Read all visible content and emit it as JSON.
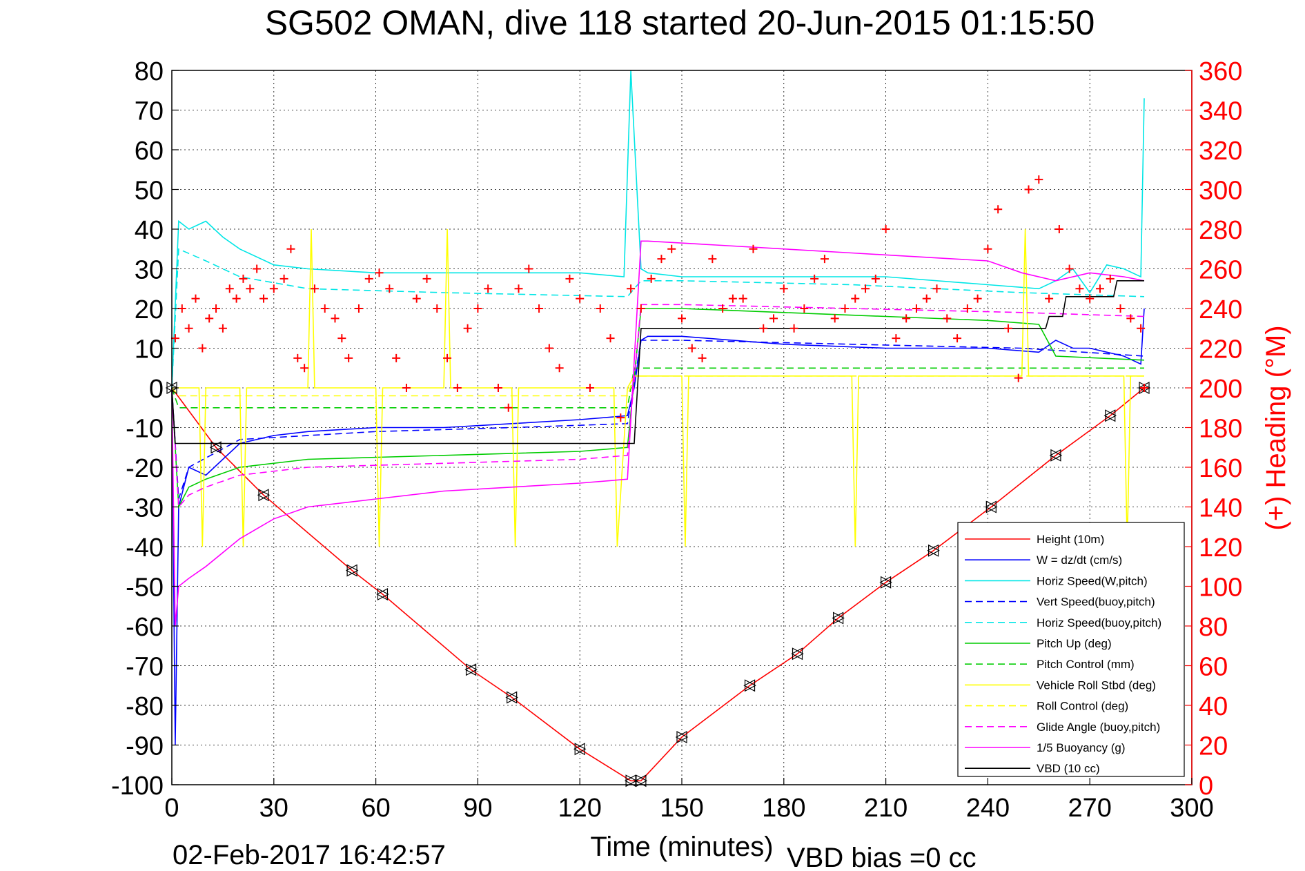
{
  "chart_data": {
    "type": "line",
    "title": "SG502 OMAN, dive 118 started 20-Jun-2015 01:15:50",
    "xlabel": "Time (minutes)",
    "ylabel": "",
    "y2label": "(+) Heading (°M)",
    "xlim": [
      0,
      300
    ],
    "ylim": [
      -100,
      80
    ],
    "y2lim": [
      0,
      360
    ],
    "x_ticks": [
      0,
      30,
      60,
      90,
      120,
      150,
      180,
      210,
      240,
      270,
      300
    ],
    "y_ticks": [
      80,
      70,
      60,
      50,
      40,
      30,
      20,
      10,
      0,
      -10,
      -20,
      -30,
      -40,
      -50,
      -60,
      -70,
      -80,
      -90,
      -100
    ],
    "y2_ticks": [
      360,
      340,
      320,
      300,
      280,
      260,
      240,
      220,
      200,
      180,
      160,
      140,
      120,
      100,
      80,
      60,
      40,
      20,
      0
    ],
    "footer_date": "02-Feb-2017 16:42:57",
    "footer_note": "VBD bias =0 cc",
    "legend_position": "lower-right",
    "grid": true,
    "series": [
      {
        "name": "Height (10m)",
        "color": "#ff0000",
        "dash": "solid",
        "x": [
          0,
          13,
          27,
          53,
          62,
          88,
          100,
          120,
          135,
          138,
          150,
          170,
          184,
          196,
          210,
          224,
          241,
          260,
          276,
          286
        ],
        "y": [
          0,
          -15,
          -27,
          -46,
          -52,
          -71,
          -78,
          -91,
          -99,
          -99,
          -88,
          -75,
          -67,
          -58,
          -49,
          -41,
          -30,
          -17,
          -7,
          0
        ]
      },
      {
        "name": "W = dz/dt (cm/s)",
        "color": "#0000ff",
        "dash": "solid",
        "x": [
          0,
          1,
          2,
          5,
          10,
          20,
          30,
          40,
          60,
          80,
          100,
          120,
          134,
          136,
          138,
          140,
          150,
          180,
          210,
          240,
          255,
          260,
          265,
          270,
          280,
          285,
          286
        ],
        "y": [
          0,
          -90,
          -30,
          -20,
          -22,
          -14,
          -12,
          -11,
          -10,
          -10,
          -9,
          -8,
          -7,
          0,
          12,
          13,
          13,
          11,
          10,
          10,
          9,
          12,
          10,
          10,
          8,
          6,
          20
        ]
      },
      {
        "name": "Horiz Speed(W,pitch)",
        "color": "#00e6e6",
        "dash": "solid",
        "x": [
          0,
          2,
          5,
          10,
          15,
          20,
          30,
          40,
          60,
          80,
          100,
          120,
          133,
          135,
          138,
          140,
          150,
          180,
          210,
          240,
          255,
          260,
          265,
          270,
          275,
          280,
          285,
          286
        ],
        "y": [
          0,
          42,
          40,
          42,
          38,
          35,
          31,
          30,
          29,
          29,
          29,
          29,
          28,
          80,
          30,
          29,
          28,
          28,
          28,
          26,
          25,
          27,
          30,
          24,
          31,
          30,
          28,
          73
        ]
      },
      {
        "name": "Vert Speed(buoy,pitch)",
        "color": "#0000ff",
        "dash": "dash",
        "x": [
          0,
          2,
          5,
          20,
          60,
          100,
          134,
          138,
          150,
          200,
          250,
          286
        ],
        "y": [
          0,
          -28,
          -20,
          -13,
          -11,
          -10,
          -9,
          12,
          12,
          11,
          10,
          8
        ]
      },
      {
        "name": "Horiz Speed(buoy,pitch)",
        "color": "#00e6e6",
        "dash": "dash",
        "x": [
          0,
          2,
          10,
          20,
          40,
          80,
          134,
          138,
          150,
          200,
          250,
          286
        ],
        "y": [
          0,
          35,
          32,
          28,
          25,
          24,
          23,
          27,
          27,
          26,
          24,
          23
        ]
      },
      {
        "name": "Pitch Up (deg)",
        "color": "#00cc00",
        "dash": "solid",
        "x": [
          0,
          2,
          5,
          10,
          20,
          40,
          80,
          120,
          134,
          138,
          150,
          180,
          210,
          240,
          255,
          260,
          286
        ],
        "y": [
          0,
          -30,
          -25,
          -23,
          -20,
          -18,
          -17,
          -16,
          -15,
          20,
          20,
          19,
          18,
          17,
          16,
          8,
          7
        ]
      },
      {
        "name": "Pitch Control (mm)",
        "color": "#00cc00",
        "dash": "dash",
        "x": [
          0,
          2,
          134,
          136,
          286
        ],
        "y": [
          0,
          -5,
          -5,
          5,
          5
        ]
      },
      {
        "name": "Vehicle Roll Stbd (deg)",
        "color": "#ffff00",
        "dash": "solid",
        "x": [
          0,
          2,
          8,
          9,
          10,
          20,
          21,
          22,
          40,
          41,
          42,
          60,
          61,
          62,
          80,
          81,
          82,
          100,
          101,
          102,
          130,
          131,
          134,
          136,
          150,
          151,
          152,
          200,
          201,
          202,
          250,
          251,
          252,
          280,
          281,
          282,
          286
        ],
        "y": [
          0,
          0,
          0,
          -40,
          0,
          0,
          -40,
          0,
          0,
          40,
          0,
          0,
          -40,
          0,
          0,
          40,
          0,
          0,
          -40,
          0,
          0,
          -40,
          0,
          3,
          3,
          -40,
          3,
          3,
          -40,
          3,
          3,
          40,
          3,
          3,
          -40,
          3,
          3
        ]
      },
      {
        "name": "Roll Control (deg)",
        "color": "#ffff00",
        "dash": "dash",
        "x": [
          0,
          2,
          134,
          136,
          286
        ],
        "y": [
          0,
          -2,
          -2,
          3,
          3
        ]
      },
      {
        "name": "Glide Angle (buoy,pitch)",
        "color": "#ff00ff",
        "dash": "dash",
        "x": [
          0,
          2,
          5,
          10,
          20,
          40,
          80,
          120,
          134,
          138,
          150,
          200,
          250,
          286
        ],
        "y": [
          0,
          -30,
          -27,
          -25,
          -22,
          -20,
          -19,
          -18,
          -17,
          21,
          21,
          20,
          19,
          18
        ]
      },
      {
        "name": "1/5 Buoyancy (g)",
        "color": "#ff00ff",
        "dash": "solid",
        "x": [
          0,
          1,
          2,
          5,
          10,
          20,
          30,
          40,
          60,
          80,
          100,
          120,
          134,
          138,
          140,
          160,
          200,
          240,
          250,
          260,
          270,
          280,
          286
        ],
        "y": [
          0,
          -60,
          -50,
          -48,
          -45,
          -38,
          -33,
          -30,
          -28,
          -26,
          -25,
          -24,
          -23,
          37,
          37,
          36,
          34,
          32,
          29,
          27,
          29,
          28,
          27
        ]
      },
      {
        "name": "VBD (10 cc)",
        "color": "#000000",
        "dash": "solid",
        "x": [
          0,
          1,
          2,
          134,
          136,
          138,
          257,
          258,
          262,
          263,
          277,
          278,
          286
        ],
        "y": [
          0,
          -14,
          -14,
          -14,
          -14,
          15,
          15,
          18,
          18,
          23,
          23,
          27,
          27
        ]
      }
    ],
    "heading_series": {
      "name": "(+) Heading (°M)",
      "color": "#ff0000",
      "x": [
        1,
        3,
        5,
        7,
        9,
        11,
        13,
        15,
        17,
        19,
        21,
        23,
        25,
        27,
        30,
        33,
        35,
        37,
        39,
        42,
        45,
        48,
        50,
        52,
        55,
        58,
        61,
        64,
        66,
        69,
        72,
        75,
        78,
        81,
        84,
        87,
        90,
        93,
        96,
        99,
        102,
        105,
        108,
        111,
        114,
        117,
        120,
        123,
        126,
        129,
        132,
        135,
        138,
        141,
        144,
        147,
        150,
        153,
        156,
        159,
        162,
        165,
        168,
        171,
        174,
        177,
        180,
        183,
        186,
        189,
        192,
        195,
        198,
        201,
        204,
        207,
        210,
        213,
        216,
        219,
        222,
        225,
        228,
        231,
        234,
        237,
        240,
        243,
        246,
        249,
        252,
        255,
        258,
        261,
        264,
        267,
        270,
        273,
        276,
        279,
        282,
        285,
        286
      ],
      "y": [
        225,
        240,
        230,
        245,
        220,
        235,
        240,
        230,
        250,
        245,
        255,
        250,
        260,
        245,
        250,
        255,
        270,
        215,
        210,
        250,
        240,
        235,
        225,
        215,
        240,
        255,
        258,
        250,
        215,
        200,
        245,
        255,
        240,
        215,
        200,
        230,
        240,
        250,
        200,
        190,
        250,
        260,
        240,
        220,
        210,
        255,
        245,
        200,
        240,
        225,
        185,
        250,
        240,
        255,
        265,
        270,
        235,
        220,
        215,
        265,
        240,
        245,
        245,
        270,
        230,
        235,
        250,
        230,
        240,
        255,
        265,
        235,
        240,
        245,
        250,
        255,
        280,
        225,
        235,
        240,
        245,
        250,
        235,
        225,
        240,
        245,
        270,
        290,
        230,
        205,
        300,
        305,
        245,
        280,
        260,
        250,
        245,
        250,
        255,
        240,
        235,
        230,
        200
      ]
    }
  }
}
